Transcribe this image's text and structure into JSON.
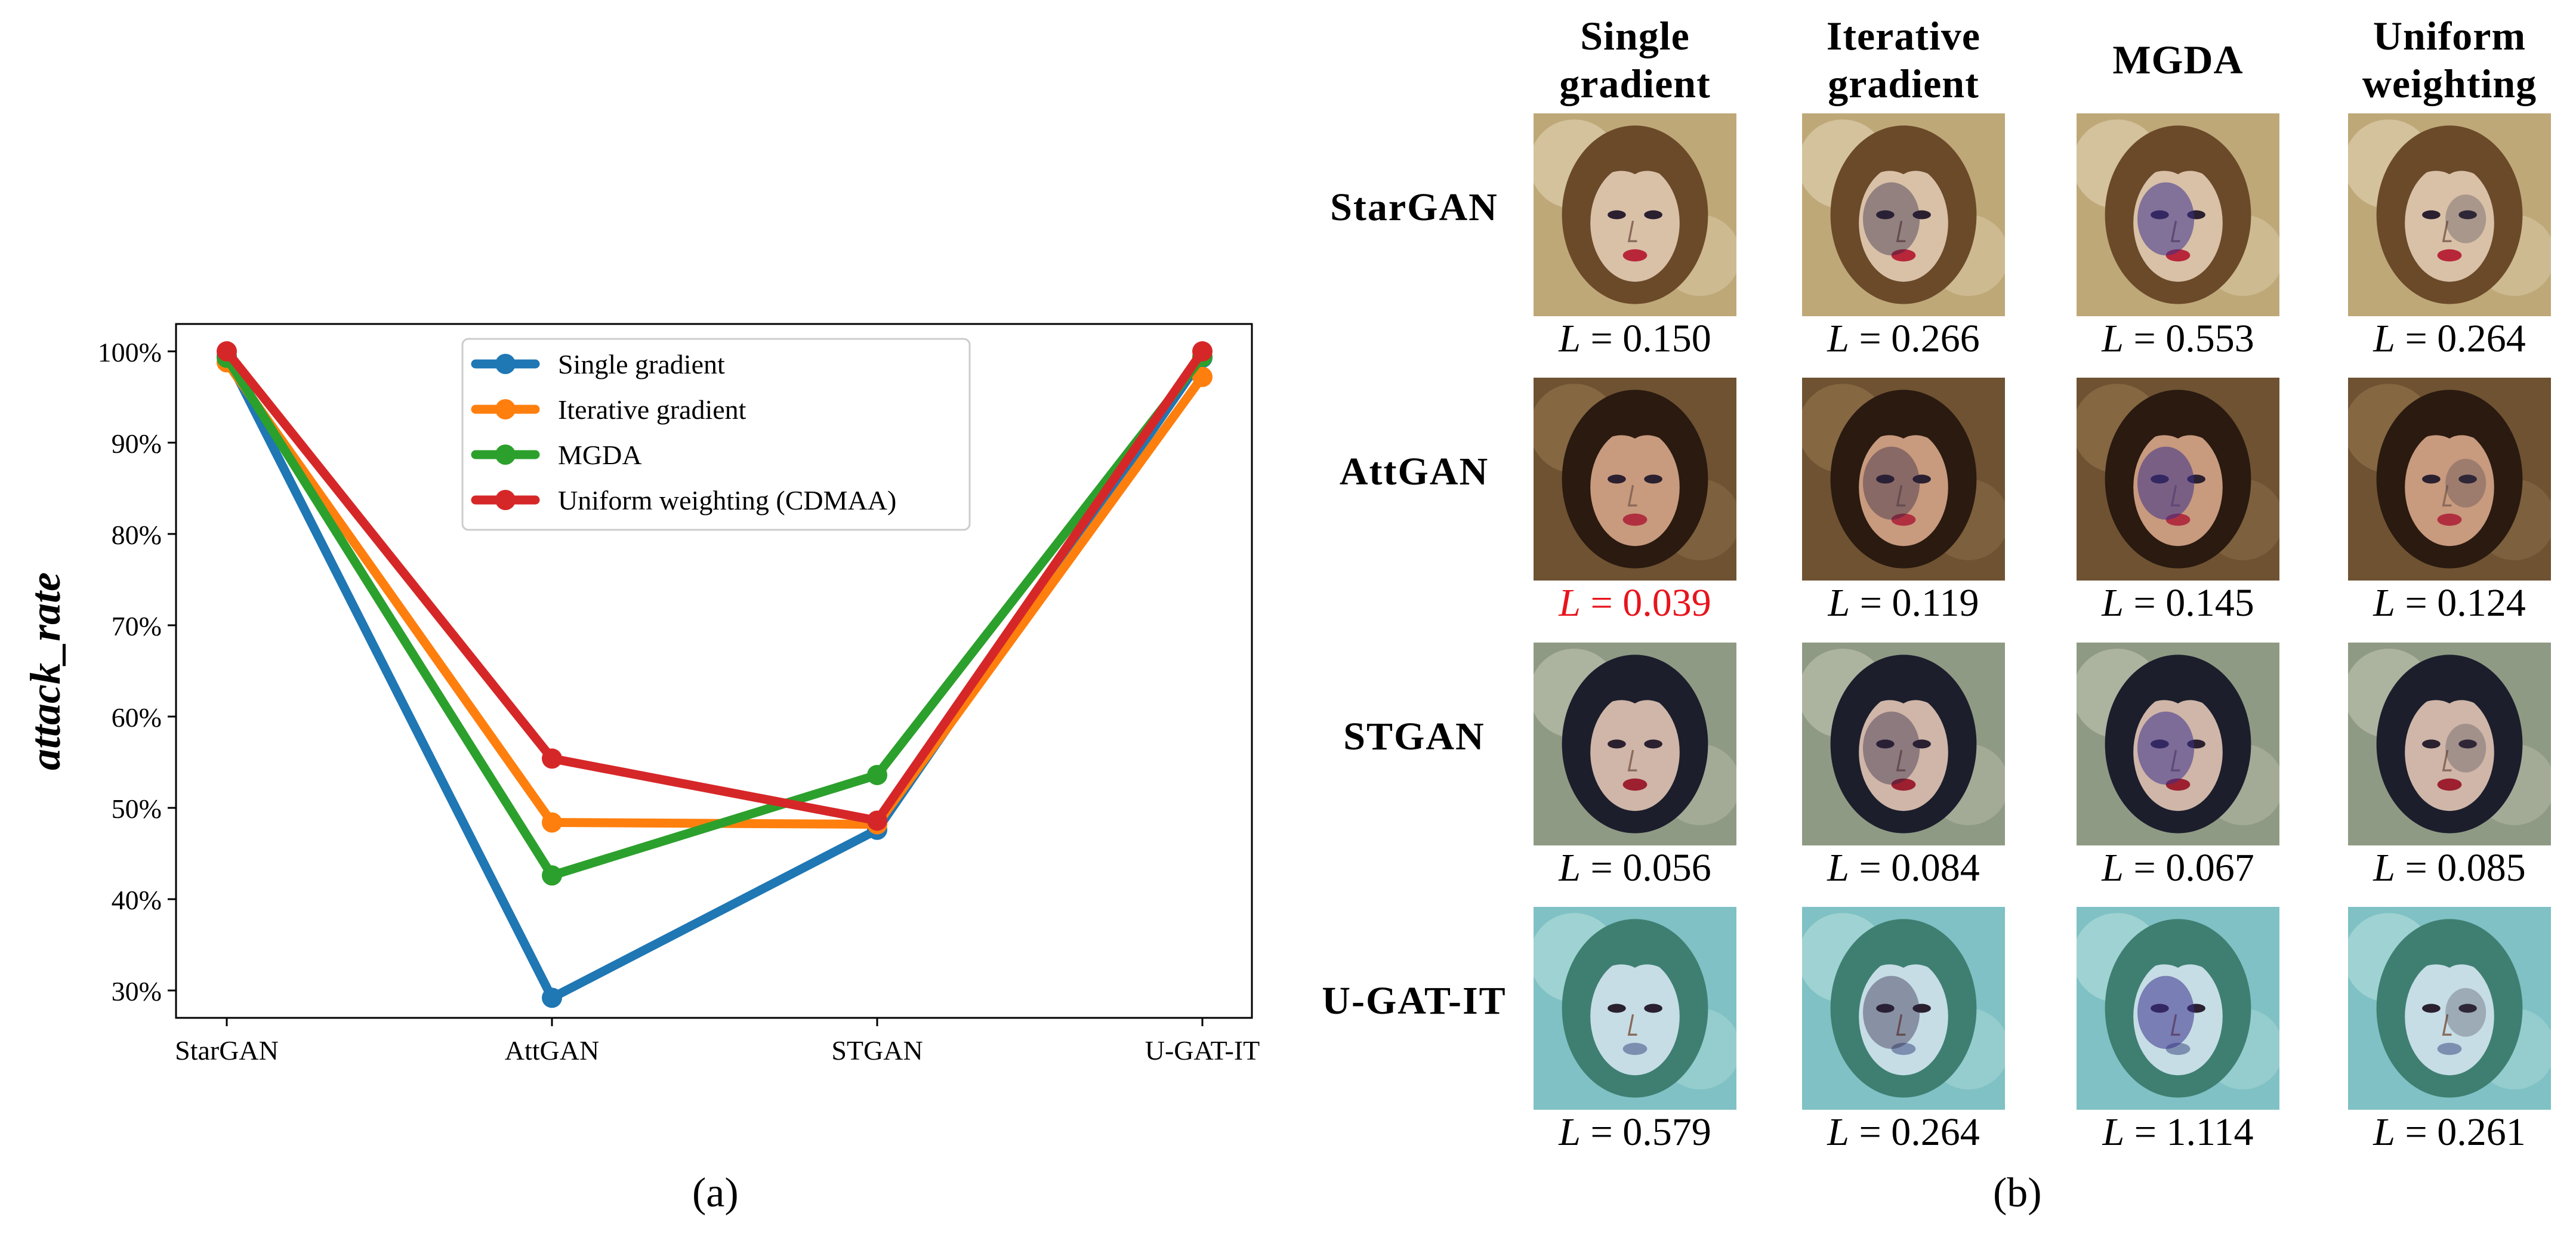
{
  "panel_a_label": "(a)",
  "panel_b_label": "(b)",
  "chart_data": {
    "type": "line",
    "title": "",
    "xlabel": "",
    "ylabel": "attack_rate",
    "categories": [
      "StarGAN",
      "AttGAN",
      "STGAN",
      "U-GAT-IT"
    ],
    "ylim": [
      27,
      103
    ],
    "yticks": [
      30,
      40,
      50,
      60,
      70,
      80,
      90,
      100
    ],
    "ytick_labels": [
      "30%",
      "40%",
      "50%",
      "60%",
      "70%",
      "80%",
      "90%",
      "100%"
    ],
    "legend_position": "top-center",
    "grid": false,
    "series": [
      {
        "name": "Single gradient",
        "color": "#1f77b4",
        "values": [
          99.5,
          29.2,
          47.6,
          99.3
        ]
      },
      {
        "name": "Iterative gradient",
        "color": "#ff7f0e",
        "values": [
          98.8,
          48.4,
          48.2,
          97.2
        ]
      },
      {
        "name": "MGDA",
        "color": "#2ca02c",
        "values": [
          99.3,
          42.6,
          53.6,
          99.4
        ]
      },
      {
        "name": "Uniform weighting (CDMAA)",
        "color": "#d62728",
        "values": [
          100.0,
          55.4,
          48.6,
          100.0
        ]
      }
    ]
  },
  "grid_b": {
    "columns": [
      "Single gradient",
      "Iterative gradient",
      "MGDA",
      "Uniform weighting"
    ],
    "column_lines": [
      [
        "Single",
        "gradient"
      ],
      [
        "Iterative",
        "gradient"
      ],
      [
        "MGDA",
        ""
      ],
      [
        "Uniform",
        "weighting"
      ]
    ],
    "rows": [
      {
        "name": "StarGAN",
        "theme": "stargan",
        "values": [
          "0.150",
          "0.266",
          "0.553",
          "0.264"
        ]
      },
      {
        "name": "AttGAN",
        "theme": "attgan",
        "values": [
          "0.039",
          "0.119",
          "0.145",
          "0.124"
        ]
      },
      {
        "name": "STGAN",
        "theme": "stgan",
        "values": [
          "0.056",
          "0.084",
          "0.067",
          "0.085"
        ]
      },
      {
        "name": "U-GAT-IT",
        "theme": "ugatit",
        "values": [
          "0.579",
          "0.264",
          "1.114",
          "0.261"
        ]
      }
    ],
    "highlight": {
      "row": 1,
      "col": 0,
      "color": "#e8141c"
    },
    "loss_symbol": "L",
    "equals": " = "
  }
}
